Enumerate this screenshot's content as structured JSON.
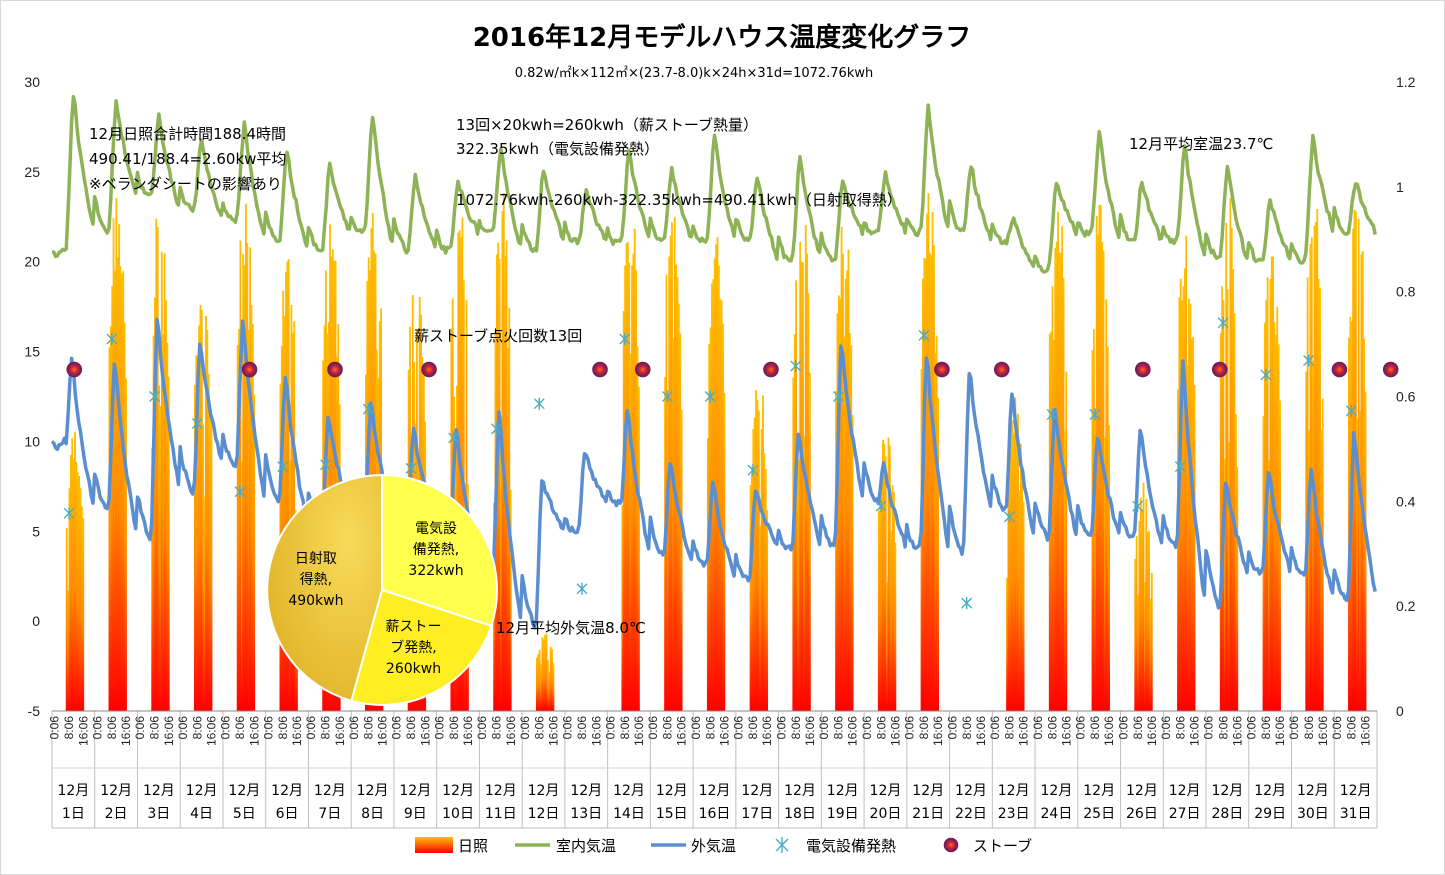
{
  "chart_data": {
    "type": "combo",
    "title": "2016年12月モデルハウス温度変化グラフ",
    "subtitle": "0.82w/㎡k×112㎡×(23.7-8.0)k×24h×31d=1072.76kwh",
    "annotations": [
      "12月日照合計時間188.4時間",
      "490.41/188.4=2.60kw平均",
      "※ベランダシートの影響あり",
      "13回×20kwh=260kwh（薪ストーブ熱量）",
      "322.35kwh（電気設備発熱）",
      "1072.76kwh-260kwh-322.35kwh=490.41kwh（日射取得熱）",
      "12月平均室温23.7℃",
      "薪ストーブ点火回数13回",
      "12月平均外気温8.0℃"
    ],
    "y_left": {
      "min": -5,
      "max": 30,
      "ticks": [
        -5,
        0,
        5,
        10,
        15,
        20,
        25,
        30
      ]
    },
    "y_right": {
      "min": 0,
      "max": 1.2,
      "ticks": [
        "0",
        "0.2",
        "0.4",
        "0.6",
        "0.8",
        "1",
        "1.2"
      ]
    },
    "x_ticks": [
      "0:06",
      "8:06",
      "16:06"
    ],
    "days": [
      "1日",
      "2日",
      "3日",
      "4日",
      "5日",
      "6日",
      "7日",
      "8日",
      "9日",
      "10日",
      "11日",
      "12日",
      "13日",
      "14日",
      "15日",
      "16日",
      "17日",
      "18日",
      "19日",
      "20日",
      "21日",
      "22日",
      "23日",
      "24日",
      "25日",
      "26日",
      "27日",
      "28日",
      "29日",
      "30日",
      "31日"
    ],
    "month_label": "12月",
    "colors": {
      "indoor": "#8DB356",
      "outdoor": "#5B8ED0",
      "electric": "#4BACC6",
      "stove": "#9B1C5A",
      "sun_top": "#FFC000",
      "sun_bottom": "#FF0000",
      "pie_sun": "#F0C43C",
      "pie_elec": "#FFFF4D",
      "pie_stove": "#FFEE22"
    },
    "series": [
      {
        "name": "日照",
        "axis": "right",
        "kind": "bar",
        "daily_sunshine": [
          0.55,
          1.0,
          1.0,
          0.85,
          1.0,
          0.9,
          0.95,
          1.0,
          0.9,
          1.0,
          1.0,
          0.15,
          0.0,
          1.0,
          1.0,
          0.95,
          0.65,
          1.0,
          0.95,
          0.55,
          1.0,
          0.0,
          0.6,
          1.0,
          1.0,
          0.45,
          0.95,
          1.0,
          0.9,
          1.0,
          1.0
        ]
      },
      {
        "name": "室内気温",
        "axis": "left",
        "kind": "line",
        "daily_max": [
          29.5,
          29.0,
          28.2,
          26.8,
          27.8,
          26.3,
          25.5,
          28.2,
          24.8,
          24.5,
          26.5,
          25.3,
          24.0,
          26.3,
          25.2,
          27.0,
          24.8,
          26.0,
          24.5,
          25.0,
          28.7,
          25.5,
          22.5,
          24.6,
          27.2,
          24.5,
          26.6,
          25.3,
          23.5,
          27.0,
          24.5
        ],
        "daily_min": [
          20.2,
          21.5,
          23.5,
          22.8,
          22.2,
          21.0,
          20.5,
          21.5,
          20.5,
          20.5,
          21.5,
          20.5,
          21.0,
          21.0,
          21.0,
          21.0,
          21.0,
          20.0,
          20.0,
          21.5,
          21.5,
          21.5,
          21.0,
          19.5,
          21.5,
          21.0,
          21.0,
          20.0,
          19.8,
          20.0,
          21.5
        ]
      },
      {
        "name": "外気温",
        "axis": "left",
        "kind": "line",
        "daily_max": [
          14.8,
          14.7,
          17.2,
          15.8,
          17.0,
          13.8,
          11.5,
          12.2,
          10.8,
          10.8,
          11.8,
          8.0,
          9.5,
          12.0,
          9.0,
          7.8,
          7.5,
          10.8,
          15.8,
          8.8,
          15.2,
          14.2,
          13.0,
          12.0,
          10.5,
          10.8,
          14.7,
          8.0,
          8.5,
          8.5,
          10.8
        ],
        "daily_min": [
          9.5,
          6.0,
          4.5,
          7.0,
          8.5,
          6.5,
          5.0,
          6.0,
          5.5,
          5.0,
          2.5,
          -0.5,
          5.0,
          6.5,
          3.5,
          3.0,
          2.2,
          4.0,
          4.0,
          6.5,
          4.0,
          3.5,
          6.0,
          4.5,
          4.5,
          4.5,
          4.0,
          0.5,
          2.5,
          2.5,
          1.0
        ]
      },
      {
        "name": "電気設備発熱",
        "axis": "left",
        "kind": "scatter",
        "points": [
          [
            0.4,
            6.0
          ],
          [
            1.4,
            15.7
          ],
          [
            2.4,
            12.5
          ],
          [
            3.4,
            11.0
          ],
          [
            4.4,
            7.2
          ],
          [
            5.4,
            8.6
          ],
          [
            6.4,
            8.7
          ],
          [
            7.4,
            11.8
          ],
          [
            8.4,
            8.5
          ],
          [
            9.4,
            10.2
          ],
          [
            10.4,
            10.7
          ],
          [
            11.4,
            12.1
          ],
          [
            12.4,
            1.8
          ],
          [
            13.4,
            15.7
          ],
          [
            14.4,
            12.5
          ],
          [
            15.4,
            12.5
          ],
          [
            16.4,
            8.4
          ],
          [
            17.4,
            14.2
          ],
          [
            18.4,
            12.5
          ],
          [
            19.4,
            6.4
          ],
          [
            20.4,
            15.9
          ],
          [
            21.4,
            1.0
          ],
          [
            22.4,
            5.8
          ],
          [
            23.4,
            11.5
          ],
          [
            24.4,
            11.5
          ],
          [
            25.4,
            6.4
          ],
          [
            26.4,
            8.6
          ],
          [
            27.4,
            16.6
          ],
          [
            28.4,
            13.7
          ],
          [
            29.4,
            14.5
          ],
          [
            30.4,
            11.7
          ]
        ]
      },
      {
        "name": "ストーブ",
        "axis": "left",
        "kind": "scatter",
        "points": [
          [
            0.1,
            14.0
          ],
          [
            4.2,
            14.0
          ],
          [
            6.2,
            14.0
          ],
          [
            8.4,
            14.0
          ],
          [
            12.4,
            14.0
          ],
          [
            13.4,
            14.0
          ],
          [
            16.4,
            14.0
          ],
          [
            20.4,
            14.0
          ],
          [
            21.8,
            14.0
          ],
          [
            25.1,
            14.0
          ],
          [
            26.9,
            14.0
          ],
          [
            29.7,
            14.0
          ],
          [
            30.9,
            14.0
          ]
        ]
      }
    ],
    "pie": {
      "slices": [
        {
          "name": "日射取得熱",
          "value": 490,
          "label": [
            "日射取",
            "得熱,",
            "490kwh"
          ]
        },
        {
          "name": "電気設備発熱",
          "value": 322,
          "label": [
            "電気設",
            "備発熱,",
            "322kwh"
          ]
        },
        {
          "name": "薪ストーブ発熱",
          "value": 260,
          "label": [
            "薪ストー",
            "ブ発熱,",
            "260kwh"
          ]
        }
      ]
    },
    "legend": [
      "日照",
      "室内気温",
      "外気温",
      "電気設備発熱",
      "ストーブ"
    ],
    "legend_position": "bottom"
  }
}
